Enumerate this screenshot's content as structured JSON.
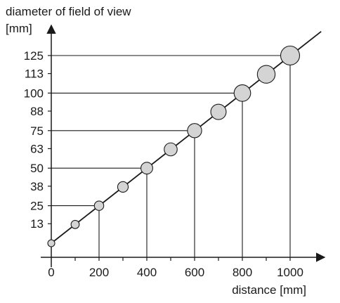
{
  "chart_data": {
    "type": "scatter",
    "ylabel_line1": "diameter of field of view",
    "ylabel_line2": "[mm]",
    "xlabel": "distance [mm]",
    "xlim": [
      0,
      1150
    ],
    "ylim": [
      0,
      140
    ],
    "x_ticks": [
      0,
      200,
      400,
      600,
      800,
      1000
    ],
    "x_tick_labels": [
      "0",
      "200",
      "400",
      "600",
      "800",
      "1000"
    ],
    "y_ticks": [
      13,
      25,
      38,
      50,
      63,
      75,
      88,
      100,
      113,
      125
    ],
    "y_tick_labels": [
      "13",
      "25",
      "38",
      "50",
      "63",
      "75",
      "88",
      "100",
      "113",
      "125"
    ],
    "points": [
      {
        "x": 0,
        "y": 0
      },
      {
        "x": 100,
        "y": 12.5
      },
      {
        "x": 200,
        "y": 25
      },
      {
        "x": 300,
        "y": 37.5
      },
      {
        "x": 400,
        "y": 50
      },
      {
        "x": 500,
        "y": 62.5
      },
      {
        "x": 600,
        "y": 75
      },
      {
        "x": 700,
        "y": 87.5
      },
      {
        "x": 800,
        "y": 100
      },
      {
        "x": 900,
        "y": 112.5
      },
      {
        "x": 1000,
        "y": 125
      }
    ],
    "trend_line": {
      "x": [
        0,
        1130
      ],
      "y": [
        0,
        141
      ]
    },
    "reference_points": [
      200,
      400,
      600,
      800,
      1000
    ],
    "grid": false,
    "marker_fill": "#d4d4d4",
    "line_color": "#1a1a1a"
  }
}
